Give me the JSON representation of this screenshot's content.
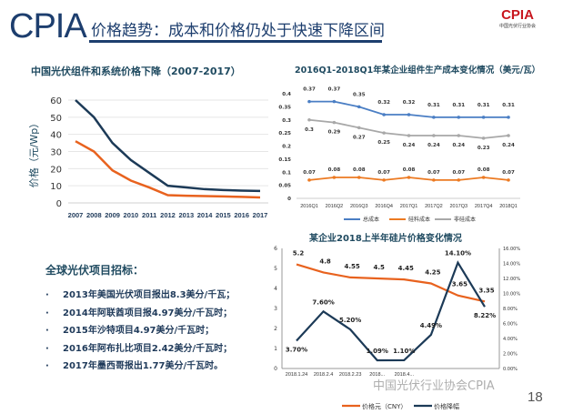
{
  "header": {
    "logo_text": "CPIA",
    "title": "价格趋势：成本和价格仍处于快速下降区间",
    "badge_text": "CPIA",
    "badge_sub": "中国光伏行业协会"
  },
  "bullets": {
    "heading": "全球光伏项目招标：",
    "items": [
      "2013年美国光伏项目报出8.3美分/千瓦；",
      "2014年阿联酋项目报4.97美分/千瓦时；",
      "2015年沙特项目4.97美分/千瓦时；",
      "2016年阿布扎比项目2.42美分/千瓦时；",
      "2017年墨西哥报出1.77美分/千瓦时。"
    ]
  },
  "watermark": "中国光伏行业协会CPIA",
  "page_number": "18",
  "chart_data": [
    {
      "type": "line",
      "title": "中国光伏组件和系统价格下降（2007-2017）",
      "ylabel": "价格（元/Wp）",
      "ylim": [
        0,
        60
      ],
      "yticks": [
        "0",
        "10",
        "20",
        "30",
        "40",
        "50",
        "60"
      ],
      "grid": true,
      "categories": [
        "2007",
        "2008",
        "2009",
        "2010",
        "2011",
        "2012",
        "2013",
        "2014",
        "2015",
        "2016",
        "2017"
      ],
      "series": [
        {
          "color": "#1c3a57",
          "values": [
            60,
            50,
            35,
            25,
            17.5,
            10,
            9,
            8,
            7.5,
            7.2,
            7
          ]
        },
        {
          "color": "#e8621e",
          "values": [
            36,
            30,
            19,
            13,
            9,
            4.5,
            4.2,
            4,
            3.8,
            3.5,
            3.2
          ]
        }
      ]
    },
    {
      "type": "line",
      "title": "2016Q1-2018Q1年某企业组件生产成本变化情况（美元/瓦）",
      "ylim": [
        0,
        0.4
      ],
      "yticks": [
        "0",
        "0.05",
        "0.1",
        "0.15",
        "0.2",
        "0.25",
        "0.3",
        "0.35",
        "0.4"
      ],
      "legend": "bottom",
      "categories": [
        "2016Q1",
        "2016Q2",
        "2016Q3",
        "2016Q4",
        "2017Q1",
        "2017Q2",
        "2017Q3",
        "2017Q4",
        "2018Q1"
      ],
      "series": [
        {
          "name": "总成本",
          "color": "#4a7ec4",
          "values": [
            0.37,
            0.37,
            0.35,
            0.32,
            0.32,
            0.31,
            0.31,
            0.31,
            0.31
          ],
          "labels": [
            "0.37",
            "0.37",
            "0.35",
            "0.32",
            "0.32",
            "0.31",
            "0.31",
            "0.31",
            "0.31"
          ]
        },
        {
          "name": "硅料成本",
          "color": "#ec7a22",
          "values": [
            0.07,
            0.08,
            0.08,
            0.07,
            0.08,
            0.07,
            0.07,
            0.08,
            0.07
          ],
          "labels": [
            "0.07",
            "0.08",
            "0.08",
            "0.07",
            "0.08",
            "0.07",
            "0.07",
            "0.08",
            "0.07"
          ]
        },
        {
          "name": "非硅成本",
          "color": "#a8a8a8",
          "values": [
            0.3,
            0.29,
            0.27,
            0.25,
            0.24,
            0.24,
            0.24,
            0.23,
            0.24
          ],
          "labels": [
            "0.3",
            "0.29",
            "0.27",
            "0.25",
            "0.24",
            "0.24",
            "0.24",
            "0.23",
            "0.24"
          ]
        }
      ]
    },
    {
      "type": "line",
      "title": "某企业2018上半年硅片价格变化情况",
      "ylim": [
        0,
        6
      ],
      "y2lim": [
        0,
        16
      ],
      "yticks": [
        "0",
        "1",
        "2",
        "3",
        "4",
        "5",
        "6"
      ],
      "y2ticks": [
        "0.00%",
        "2.00%",
        "4.00%",
        "6.00%",
        "8.00%",
        "10.00%",
        "12.00%",
        "14.00%",
        "16.00%"
      ],
      "legend": "bottom",
      "categories": [
        "2018.1.24",
        "2018.2.4",
        "2018.2.23",
        "2018...",
        "2018.4...",
        "",
        "",
        ""
      ],
      "series": [
        {
          "name": "价格元（CNY）",
          "color": "#e8621e",
          "axis": "left",
          "values": [
            5.2,
            4.8,
            4.55,
            4.5,
            4.45,
            4.25,
            3.65,
            3.35
          ],
          "labels": [
            "5.2",
            "4.8",
            "4.55",
            "4.5",
            "4.45",
            "4.25",
            "3.65",
            "3.35"
          ]
        },
        {
          "name": "价格降幅",
          "color": "#1c3a57",
          "axis": "right",
          "values": [
            3.7,
            7.6,
            5.2,
            1.09,
            1.1,
            4.49,
            14.1,
            8.22
          ],
          "labels": [
            "3.70%",
            "7.60%",
            "5.20%",
            "1.09%",
            "1.10%",
            "4.49%",
            "14.10%",
            "8.22%"
          ]
        }
      ]
    }
  ]
}
